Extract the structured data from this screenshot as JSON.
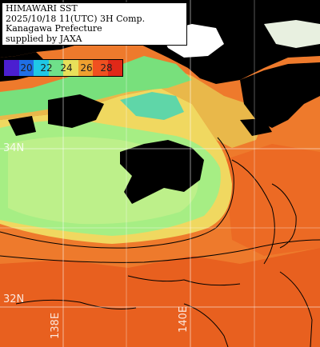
{
  "title": {
    "lines": [
      "HIMAWARI SST",
      "2025/10/18 11(UTC) 3H Comp.",
      "Kanagawa Prefecture",
      "supplied by JAXA"
    ]
  },
  "colorbar": {
    "ticks": [
      "20",
      "22",
      "24",
      "26",
      "28"
    ],
    "colors": [
      "#4b1fd0",
      "#1f6fe6",
      "#1fc8e6",
      "#6fe08a",
      "#e8e05a",
      "#f0a030",
      "#f05020",
      "#e02818"
    ]
  },
  "coordinates": {
    "lat_34": "34N",
    "lat_32": "32N",
    "lon_138": "138E",
    "lon_140": "140E"
  },
  "colors": {
    "land": "#000000",
    "cloud": "#ffffff",
    "cool_water": "#8fe878",
    "mid_water": "#f0e070",
    "warm_water": "#f07a2a",
    "hot_water": "#e85020",
    "grid": "#ffffff"
  }
}
